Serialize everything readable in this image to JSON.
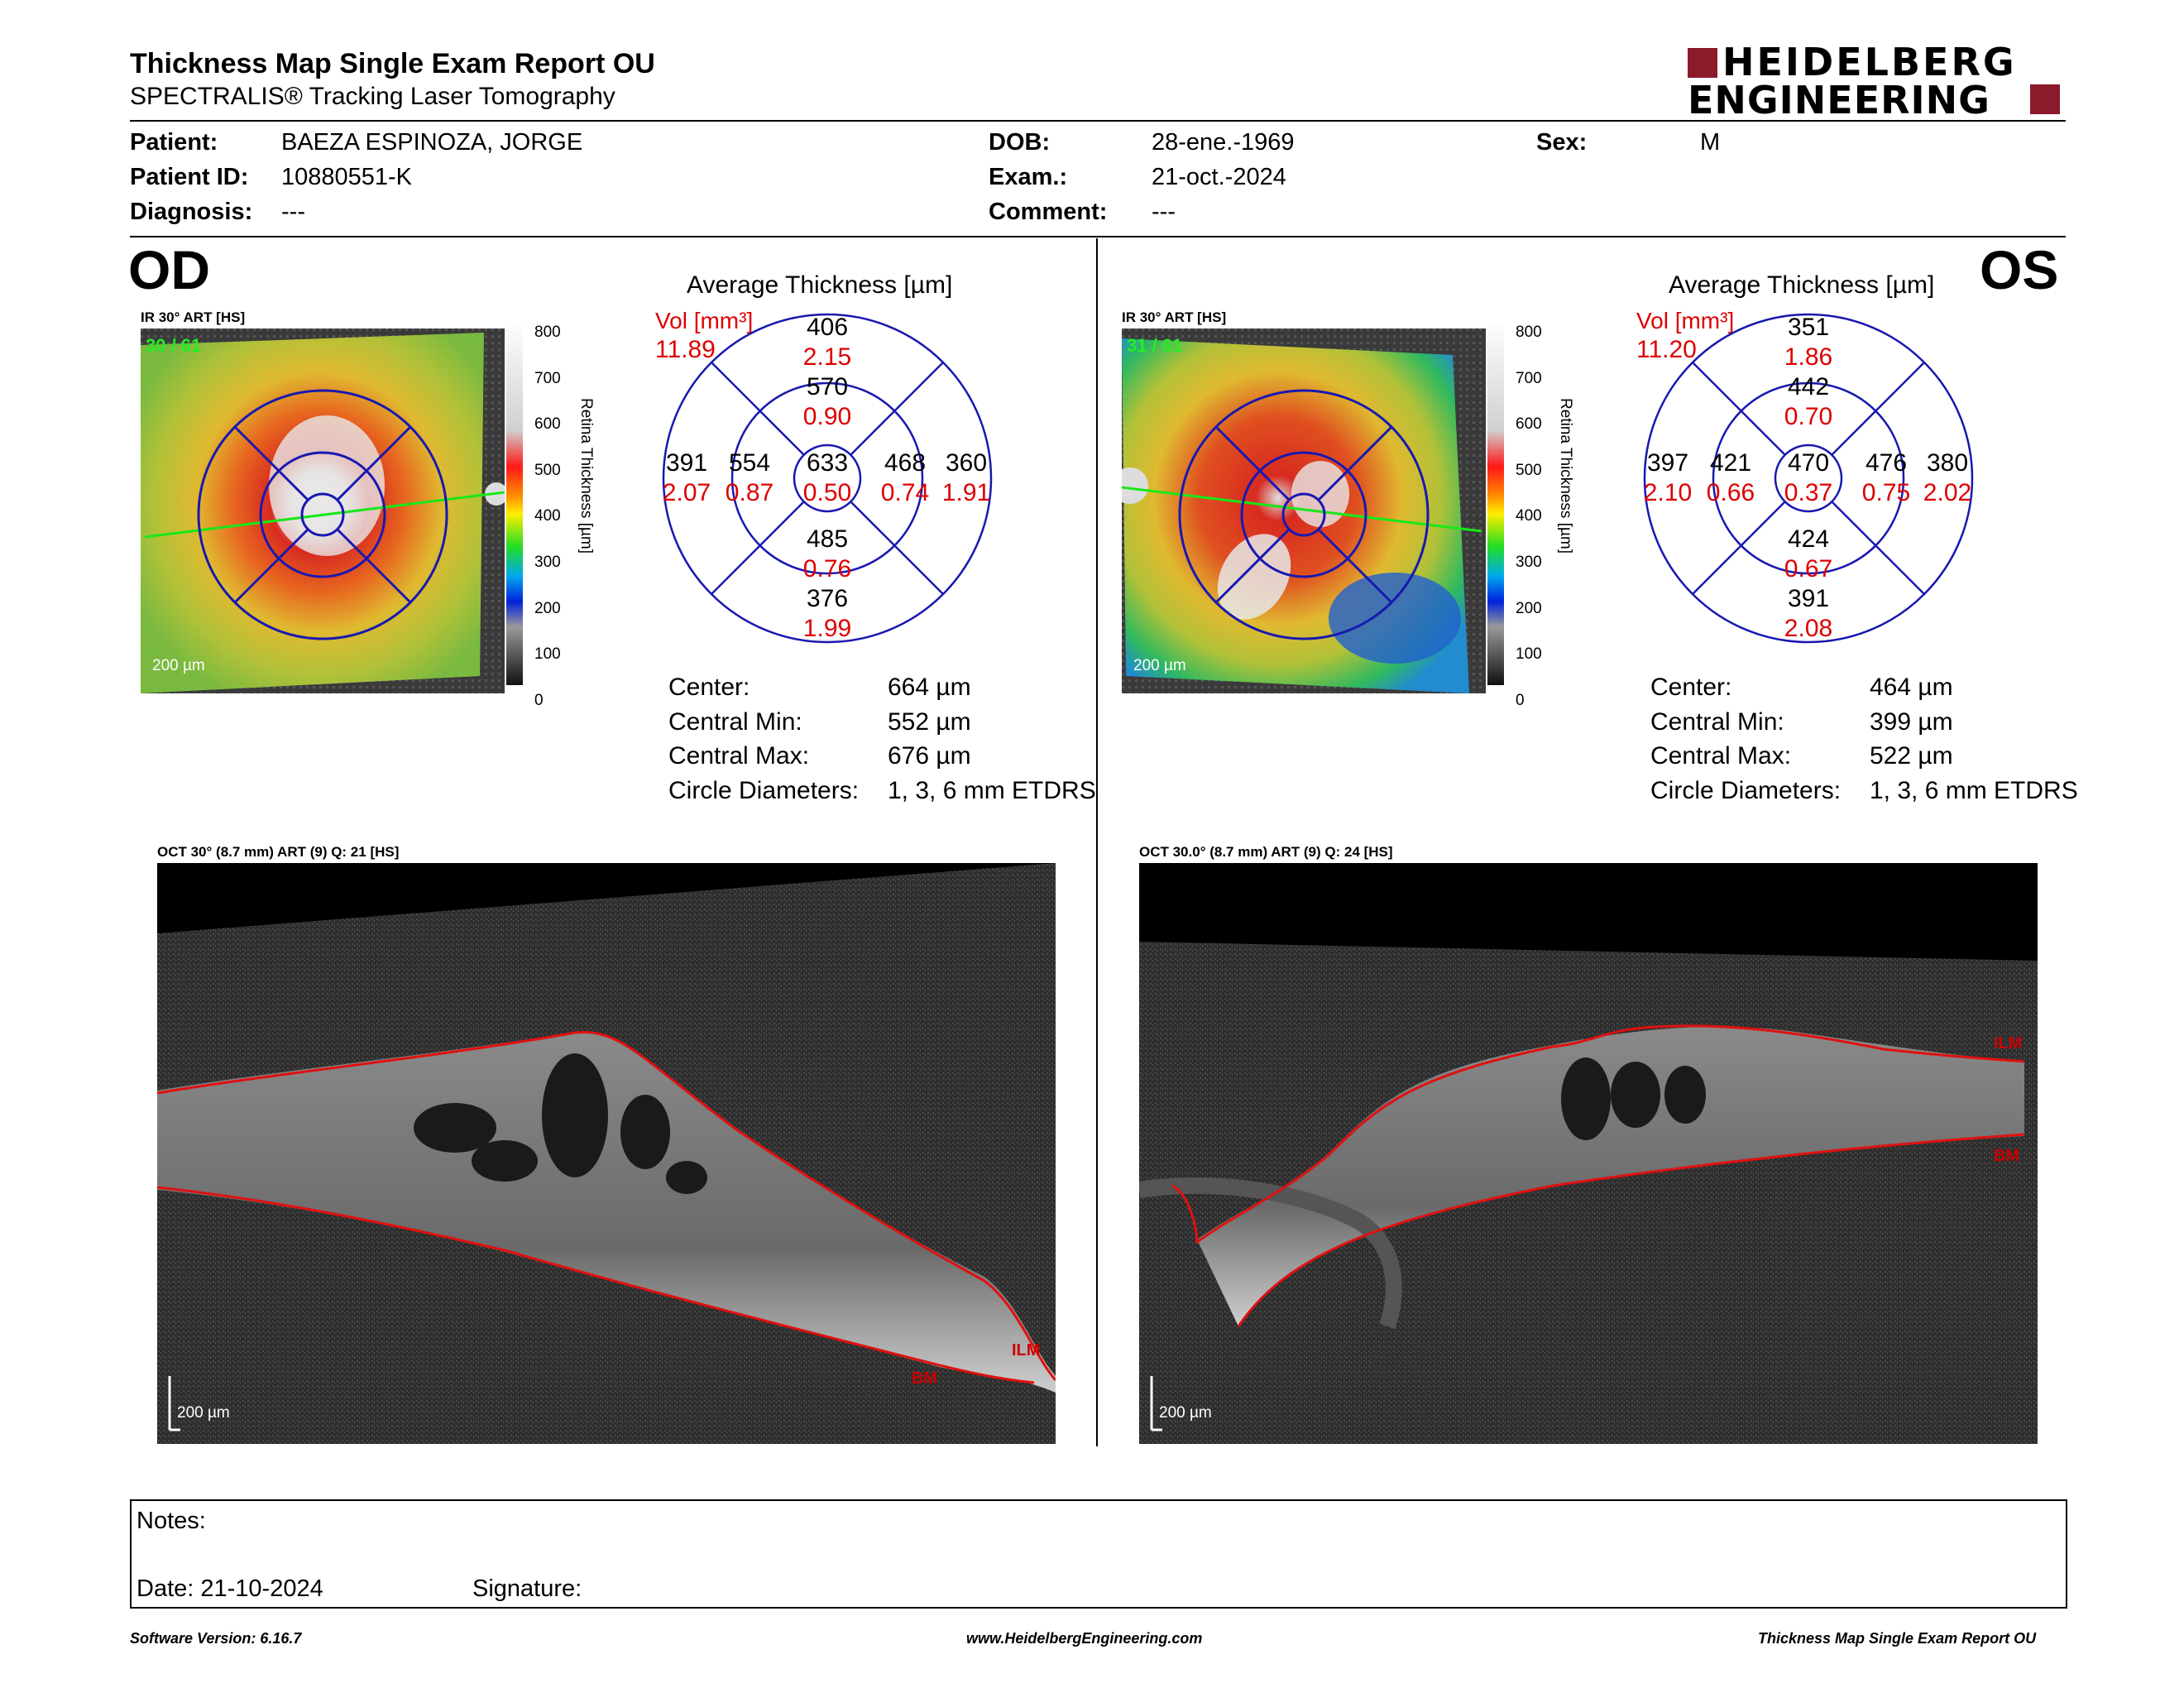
{
  "header": {
    "title": "Thickness Map Single Exam Report OU",
    "subtitle": "SPECTRALIS® Tracking Laser Tomography",
    "logo_line1": "HEIDELBERG",
    "logo_line2": "ENGINEERING",
    "brand_color": "#8b1a2b"
  },
  "patient": {
    "patient_label": "Patient:",
    "patient_value": "BAEZA ESPINOZA, JORGE",
    "id_label": "Patient ID:",
    "id_value": "10880551-K",
    "diagnosis_label": "Diagnosis:",
    "diagnosis_value": "---",
    "dob_label": "DOB:",
    "dob_value": "28-ene.-1969",
    "exam_label": "Exam.:",
    "exam_value": "21-oct.-2024",
    "comment_label": "Comment:",
    "comment_value": "---",
    "sex_label": "Sex:",
    "sex_value": "M"
  },
  "od": {
    "eye": "OD",
    "ir_label": "IR 30° ART [HS]",
    "frame": "30 / 61",
    "scale": "200 µm",
    "avg_title": "Average Thickness [µm]",
    "vol_label": "Vol [mm³]",
    "vol_total": "11.89",
    "sectors": {
      "outer_sup": {
        "t": "406",
        "v": "2.15"
      },
      "inner_sup": {
        "t": "570",
        "v": "0.90"
      },
      "outer_temp": {
        "t": "391",
        "v": "2.07"
      },
      "inner_temp": {
        "t": "554",
        "v": "0.87"
      },
      "center": {
        "t": "633",
        "v": "0.50"
      },
      "inner_nas": {
        "t": "468",
        "v": "0.74"
      },
      "outer_nas": {
        "t": "360",
        "v": "1.91"
      },
      "inner_inf": {
        "t": "485",
        "v": "0.76"
      },
      "outer_inf": {
        "t": "376",
        "v": "1.99"
      }
    },
    "stats": {
      "center_label": "Center:",
      "center_value": "664 µm",
      "min_label": "Central Min:",
      "min_value": "552 µm",
      "max_label": "Central Max:",
      "max_value": "676 µm",
      "diam_label": "Circle Diameters:",
      "diam_value": "1, 3, 6 mm ETDRS"
    },
    "oct_label": "OCT 30° (8.7 mm) ART (9) Q: 21 [HS]",
    "ilm": "ILM",
    "bm": "BM",
    "oct_scale": "200 µm"
  },
  "os": {
    "eye": "OS",
    "ir_label": "IR 30° ART [HS]",
    "frame": "31 / 61",
    "scale": "200 µm",
    "avg_title": "Average Thickness [µm]",
    "vol_label": "Vol [mm³]",
    "vol_total": "11.20",
    "sectors": {
      "outer_sup": {
        "t": "351",
        "v": "1.86"
      },
      "inner_sup": {
        "t": "442",
        "v": "0.70"
      },
      "outer_temp": {
        "t": "397",
        "v": "2.10"
      },
      "inner_temp": {
        "t": "421",
        "v": "0.66"
      },
      "center": {
        "t": "470",
        "v": "0.37"
      },
      "inner_nas": {
        "t": "476",
        "v": "0.75"
      },
      "outer_nas": {
        "t": "380",
        "v": "2.02"
      },
      "inner_inf": {
        "t": "424",
        "v": "0.67"
      },
      "outer_inf": {
        "t": "391",
        "v": "2.08"
      }
    },
    "stats": {
      "center_label": "Center:",
      "center_value": "464 µm",
      "min_label": "Central Min:",
      "min_value": "399 µm",
      "max_label": "Central Max:",
      "max_value": "522 µm",
      "diam_label": "Circle Diameters:",
      "diam_value": "1, 3, 6 mm ETDRS"
    },
    "oct_label": "OCT 30.0° (8.7 mm) ART (9) Q: 24 [HS]",
    "ilm": "ILM",
    "bm": "BM",
    "oct_scale": "200 µm"
  },
  "colorbar": {
    "ticks": [
      "800",
      "700",
      "600",
      "500",
      "400",
      "300",
      "200",
      "100",
      "0"
    ],
    "axis_label": "Retina Thickness [µm]"
  },
  "notes": {
    "notes_label": "Notes:",
    "date_label": "Date: 21-10-2024",
    "signature_label": "Signature:"
  },
  "footer": {
    "left": "Software Version: 6.16.7",
    "center": "www.HeidelbergEngineering.com",
    "right": "Thickness Map Single Exam Report OU"
  }
}
